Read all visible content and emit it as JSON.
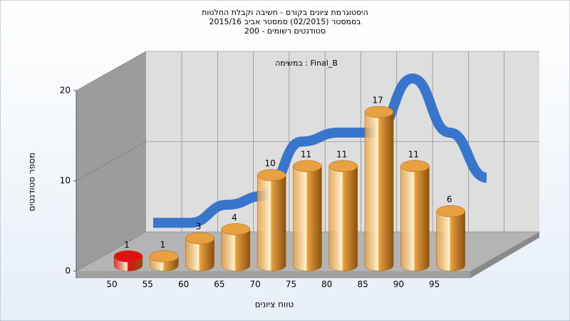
{
  "chart_data": {
    "type": "bar",
    "title": [
      "היסטוגרמת ציונים בקורס - חשיבה וקבלת החלטות",
      "בסמסטר (02/2015) סמסטר אביב 2015/16",
      "סטודנטים רשומים - 200"
    ],
    "annotation": "במשימה : Final_B",
    "x_label": "טווח ציונים",
    "y_label": "מספר סטודנטים",
    "categories": [
      "50",
      "55",
      "60",
      "65",
      "70",
      "75",
      "80",
      "85",
      "90",
      "95"
    ],
    "values": [
      1,
      1,
      3,
      4,
      10,
      11,
      11,
      17,
      11,
      6
    ],
    "colors": [
      "#e01010",
      "#e8a040",
      "#e8a040",
      "#e8a040",
      "#e8a040",
      "#e8a040",
      "#e8a040",
      "#e8a040",
      "#e8a040",
      "#e8a040"
    ],
    "line_color": "#2f6fc8",
    "ylim": [
      0,
      20
    ],
    "yticks": [
      0,
      10,
      20
    ],
    "grid": true
  }
}
